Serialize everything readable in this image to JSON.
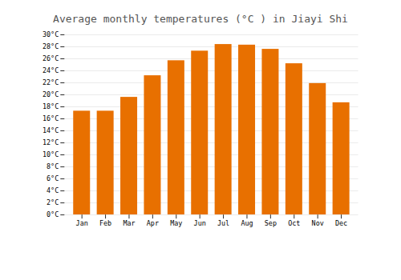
{
  "chart_data": {
    "type": "bar",
    "title": "Average monthly temperatures (°C ) in Jiayi Shi",
    "categories": [
      "Jan",
      "Feb",
      "Mar",
      "Apr",
      "May",
      "Jun",
      "Jul",
      "Aug",
      "Sep",
      "Oct",
      "Nov",
      "Dec"
    ],
    "values": [
      17.3,
      17.3,
      19.6,
      23.2,
      25.7,
      27.3,
      28.4,
      28.3,
      27.6,
      25.2,
      21.9,
      18.7
    ],
    "color": "#E87000",
    "ylim": [
      0,
      30
    ],
    "yticks": [
      {
        "value": 0,
        "label": "0°C"
      },
      {
        "value": 2,
        "label": "2°C"
      },
      {
        "value": 4,
        "label": "4°C"
      },
      {
        "value": 6,
        "label": "6°C"
      },
      {
        "value": 8,
        "label": "8°C"
      },
      {
        "value": 10,
        "label": "10°C"
      },
      {
        "value": 12,
        "label": "12°C"
      },
      {
        "value": 14,
        "label": "14°C"
      },
      {
        "value": 16,
        "label": "16°C"
      },
      {
        "value": 18,
        "label": "18°C"
      },
      {
        "value": 20,
        "label": "20°C"
      },
      {
        "value": 22,
        "label": "22°C"
      },
      {
        "value": 24,
        "label": "24°C"
      },
      {
        "value": 26,
        "label": "26°C"
      },
      {
        "value": 28,
        "label": "28°C"
      },
      {
        "value": 30,
        "label": "30°C"
      }
    ],
    "grid": true
  }
}
